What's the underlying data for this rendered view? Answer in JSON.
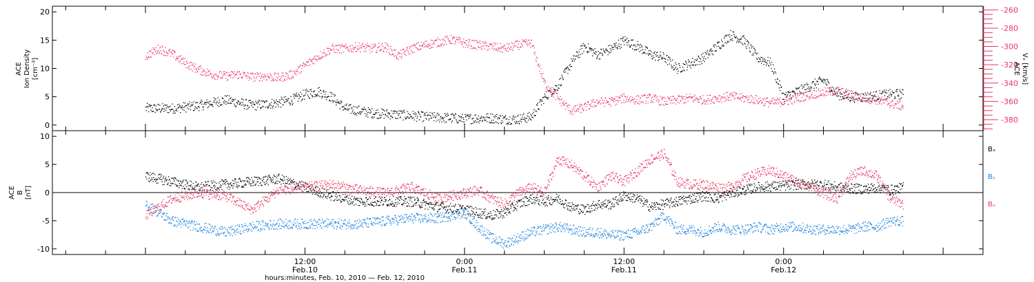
{
  "chart_data": [
    {
      "type": "scatter",
      "panel": "top",
      "left_axis": {
        "label_lines": [
          "ACE",
          "Ion Density",
          "[cm⁻³]"
        ],
        "ylim": [
          -1,
          21
        ],
        "ticks": [
          0,
          5,
          10,
          15,
          20
        ],
        "color": "#000000"
      },
      "right_axis": {
        "label_lines": [
          "ACE",
          "Vₓ [km/s]"
        ],
        "ylim": [
          -392,
          -256
        ],
        "ticks": [
          -380,
          -360,
          -340,
          -320,
          -300,
          -280,
          -260
        ],
        "color": "#e8325f"
      },
      "series": [
        {
          "axis": "left",
          "color": "#000000",
          "hours": [
            0,
            2,
            4,
            6,
            8,
            10,
            11,
            12,
            13,
            14,
            15,
            17,
            19,
            20,
            21,
            23,
            24,
            25,
            26,
            27,
            28,
            29,
            30,
            31,
            32,
            33,
            34,
            35,
            36,
            37,
            38,
            39,
            40,
            41,
            42,
            43,
            44,
            45,
            46,
            47,
            48,
            49,
            50,
            51,
            52,
            53,
            54,
            56,
            57
          ],
          "values": [
            3,
            3,
            3.5,
            4.5,
            3.5,
            4,
            4.5,
            5.5,
            6,
            5,
            3,
            2.2,
            1.9,
            1.7,
            1.5,
            1.3,
            1.1,
            1.3,
            1.3,
            1.1,
            1.1,
            1.5,
            5,
            7,
            11,
            14,
            12.5,
            13.5,
            15,
            14,
            12.5,
            12,
            10,
            11,
            12,
            14,
            16,
            15,
            12,
            11,
            5,
            6,
            7,
            8,
            5.5,
            5,
            5,
            5.5,
            5.5
          ]
        },
        {
          "axis": "right",
          "color": "#e8325f",
          "hours": [
            0,
            1,
            2,
            3,
            4,
            5,
            6,
            7,
            8,
            9,
            10,
            11,
            12,
            13,
            14,
            15,
            16,
            17,
            18,
            19,
            20,
            21,
            22,
            23,
            24,
            25,
            26,
            27,
            28,
            29,
            30,
            31,
            32,
            33,
            34,
            35,
            36,
            37,
            38,
            39,
            40,
            41,
            42,
            43,
            44,
            45,
            46,
            47,
            48,
            49,
            50,
            51,
            52,
            53,
            54,
            55,
            56,
            57
          ],
          "values": [
            -310,
            -302,
            -308,
            -318,
            -325,
            -330,
            -332,
            -330,
            -333,
            -332,
            -334,
            -330,
            -320,
            -310,
            -302,
            -302,
            -300,
            -302,
            -300,
            -310,
            -302,
            -298,
            -295,
            -292,
            -296,
            -298,
            -300,
            -302,
            -298,
            -296,
            -340,
            -356,
            -370,
            -366,
            -360,
            -360,
            -356,
            -358,
            -356,
            -360,
            -358,
            -356,
            -358,
            -356,
            -354,
            -356,
            -358,
            -361,
            -360,
            -356,
            -352,
            -350,
            -348,
            -352,
            -356,
            -358,
            -362,
            -365
          ]
        }
      ]
    },
    {
      "type": "scatter",
      "panel": "bottom",
      "left_axis": {
        "label_lines": [
          "ACE",
          "B",
          "[nT]"
        ],
        "ylim": [
          -11,
          11
        ],
        "ticks": [
          -10,
          -5,
          0,
          5,
          10
        ],
        "color": "#000000"
      },
      "legend": [
        {
          "name": "Bₓ",
          "color": "#000000"
        },
        {
          "name": "Bᵧ",
          "color": "#1a7fdc"
        },
        {
          "name": "Bᵤ",
          "color": "#e8325f"
        }
      ],
      "series": [
        {
          "name": "Bₓ",
          "color": "#000000",
          "hours": [
            0,
            2,
            4,
            6,
            8,
            10,
            12,
            14,
            16,
            18,
            20,
            22,
            24,
            25,
            26,
            27,
            28,
            29,
            30,
            31,
            32,
            33,
            34,
            35,
            36,
            37,
            38,
            39,
            40,
            41,
            42,
            43,
            44,
            45,
            46,
            47,
            48,
            49,
            50,
            51,
            52,
            53,
            54,
            55,
            56,
            57
          ],
          "values": [
            3,
            2,
            1,
            1.5,
            2,
            2.5,
            1,
            -0.5,
            -1.5,
            -1.5,
            -1.5,
            -2.5,
            -3,
            -3.5,
            -4,
            -3.5,
            -2,
            -1,
            -1.5,
            -1,
            -2.5,
            -3,
            -2,
            -2,
            -0.5,
            -1,
            -2.5,
            -2,
            -1.5,
            -1,
            -0.5,
            -1,
            0,
            0.5,
            1,
            1.2,
            1.3,
            1.5,
            1.5,
            1.5,
            1,
            0.8,
            0.7,
            1,
            0.5,
            1
          ]
        },
        {
          "name": "Bᵧ",
          "color": "#1a7fdc",
          "hours": [
            0,
            2,
            4,
            6,
            8,
            10,
            12,
            14,
            16,
            18,
            20,
            22,
            24,
            25,
            26,
            27,
            28,
            29,
            30,
            31,
            32,
            33,
            34,
            35,
            36,
            37,
            38,
            39,
            40,
            41,
            42,
            43,
            44,
            45,
            46,
            47,
            48,
            49,
            50,
            51,
            52,
            53,
            54,
            55,
            56,
            57
          ],
          "values": [
            -2,
            -5,
            -6,
            -7,
            -6,
            -5.5,
            -5.5,
            -5.5,
            -5.5,
            -5,
            -4.5,
            -4.5,
            -3.5,
            -6,
            -8,
            -9,
            -8,
            -7,
            -6.5,
            -6,
            -6.5,
            -7,
            -7,
            -7.5,
            -7.5,
            -7,
            -6,
            -4,
            -6.5,
            -6.5,
            -7,
            -6,
            -6.5,
            -6.5,
            -6,
            -6.5,
            -6,
            -6,
            -6.5,
            -6.5,
            -6.5,
            -6.5,
            -6,
            -6,
            -5,
            -5
          ]
        },
        {
          "name": "Bᵤ",
          "color": "#e8325f",
          "hours": [
            0,
            2,
            4,
            6,
            8,
            10,
            12,
            14,
            16,
            18,
            20,
            22,
            24,
            25,
            26,
            27,
            28,
            29,
            30,
            31,
            32,
            33,
            34,
            35,
            36,
            37,
            38,
            39,
            40,
            41,
            42,
            43,
            44,
            45,
            46,
            47,
            48,
            49,
            50,
            51,
            52,
            53,
            54,
            55,
            56,
            57
          ],
          "values": [
            -4,
            -1,
            0,
            -0.5,
            -3,
            0.5,
            1,
            1.5,
            0.5,
            0,
            1,
            -1,
            0,
            0.5,
            -1,
            -2,
            0,
            1,
            0,
            6,
            5,
            3,
            1,
            3,
            2,
            4,
            6,
            7,
            2,
            1.5,
            1.5,
            1,
            1,
            2.5,
            3.5,
            4,
            3,
            2,
            1,
            0,
            -1,
            3,
            4,
            3,
            -1,
            -2
          ]
        }
      ]
    }
  ],
  "x_axis": {
    "range_hours": [
      -7,
      63
    ],
    "ticks": [
      {
        "hour": 12,
        "line1": "12:00",
        "line2": "Feb.10"
      },
      {
        "hour": 24,
        "line1": "0:00",
        "line2": "Feb.11"
      },
      {
        "hour": 36,
        "line1": "12:00",
        "line2": "Feb.11"
      },
      {
        "hour": 48,
        "line1": "0:00",
        "line2": "Feb.12"
      }
    ],
    "xlabel": "hours:minutes, Feb. 10, 2010 — Feb. 12, 2010"
  },
  "colors": {
    "black": "#000000",
    "red": "#e8325f",
    "blue": "#1a7fdc"
  }
}
